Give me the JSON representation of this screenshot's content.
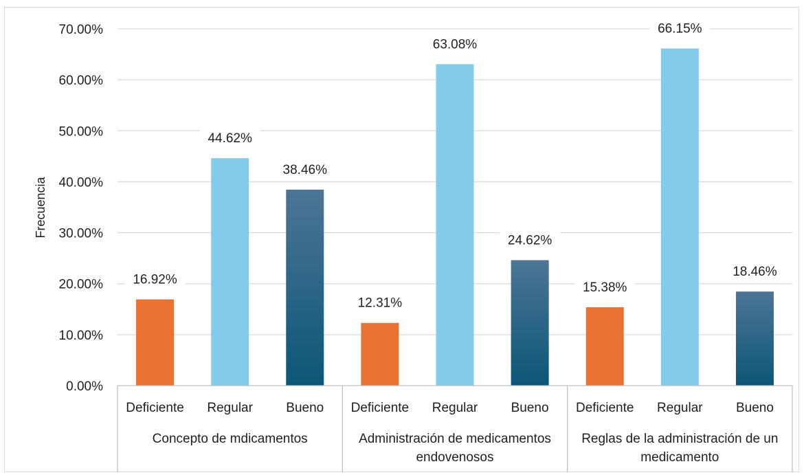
{
  "chart_data": {
    "type": "bar",
    "title": "",
    "xlabel": "",
    "ylabel": "Frecuencia",
    "ylim": [
      0,
      70
    ],
    "yticks": [
      "0.00%",
      "10.00%",
      "20.00%",
      "30.00%",
      "40.00%",
      "50.00%",
      "60.00%",
      "70.00%"
    ],
    "grid": true,
    "legend": "none",
    "groups": [
      {
        "label": "Concepto de mdicamentos",
        "bars": [
          {
            "category": "Deficiente",
            "value": 16.92,
            "label": "16.92%"
          },
          {
            "category": "Regular",
            "value": 44.62,
            "label": "44.62%"
          },
          {
            "category": "Bueno",
            "value": 38.46,
            "label": "38.46%"
          }
        ]
      },
      {
        "label": "Administración de medicamentos endovenosos",
        "bars": [
          {
            "category": "Deficiente",
            "value": 12.31,
            "label": "12.31%"
          },
          {
            "category": "Regular",
            "value": 63.08,
            "label": "63.08%"
          },
          {
            "category": "Bueno",
            "value": 24.62,
            "label": "24.62%"
          }
        ]
      },
      {
        "label": "Reglas de la administración de un medicamento",
        "bars": [
          {
            "category": "Deficiente",
            "value": 15.38,
            "label": "15.38%"
          },
          {
            "category": "Regular",
            "value": 66.15,
            "label": "66.15%"
          },
          {
            "category": "Bueno",
            "value": 18.46,
            "label": "18.46%"
          }
        ]
      }
    ],
    "colors": {
      "Deficiente": "#e97132",
      "Regular": "#83cbeb",
      "Bueno_top": "#4d7595",
      "Bueno_bottom": "#0b5677"
    }
  }
}
